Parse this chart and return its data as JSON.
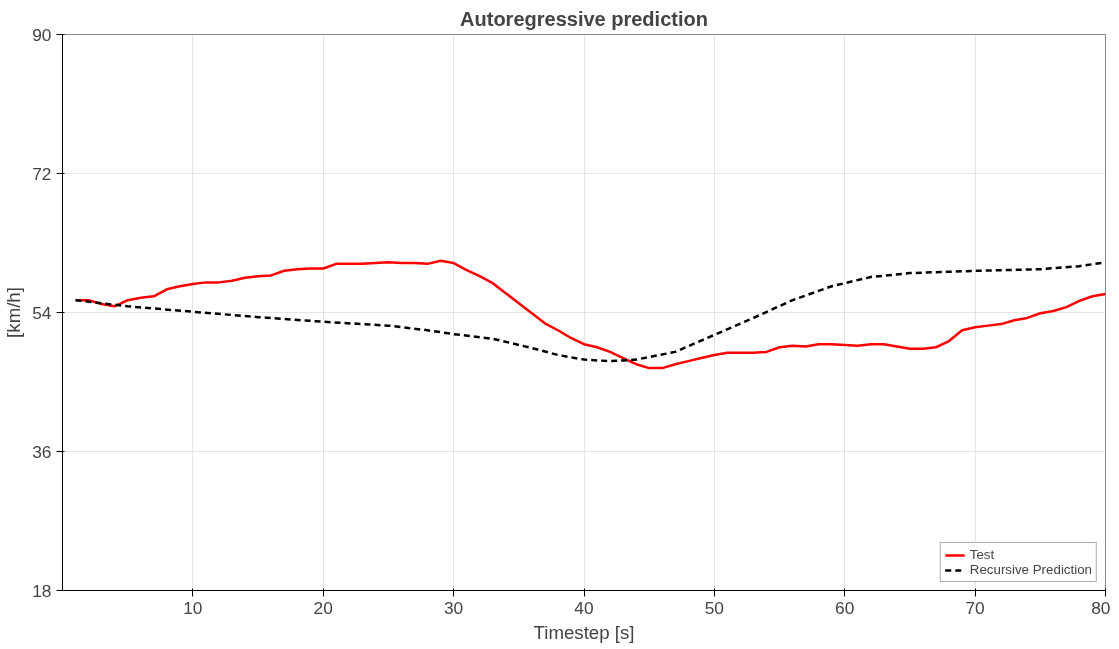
{
  "chart_data": {
    "type": "line",
    "title": "Autoregressive prediction",
    "xlabel": "Timestep [s]",
    "ylabel": "[km/h]",
    "xlim": [
      0,
      80
    ],
    "xticks": [
      10,
      20,
      30,
      40,
      50,
      60,
      70,
      80
    ],
    "ylim": [
      18,
      90
    ],
    "yticks": [
      18,
      36,
      54,
      72,
      90
    ],
    "grid": true,
    "legend": "bottom right",
    "series": [
      {
        "name": "Test",
        "color": "#ff0000",
        "line_style": "solid",
        "x": [
          1,
          2,
          3,
          4,
          5,
          6,
          7,
          8,
          9,
          10,
          11,
          12,
          13,
          14,
          15,
          16,
          17,
          18,
          19,
          20,
          21,
          22,
          23,
          24,
          25,
          26,
          27,
          28,
          29,
          30,
          31,
          32,
          33,
          34,
          35,
          36,
          37,
          38,
          39,
          40,
          41,
          42,
          43,
          44,
          45,
          46,
          47,
          48,
          49,
          50,
          51,
          52,
          53,
          54,
          55,
          56,
          57,
          58,
          59,
          60,
          61,
          62,
          63,
          64,
          65,
          66,
          67,
          68,
          69,
          70,
          71,
          72,
          73,
          74,
          75,
          76,
          77,
          78,
          79,
          80
        ],
        "values": [
          55.6,
          55.6,
          55.1,
          54.8,
          55.6,
          55.9,
          56.1,
          57.0,
          57.4,
          57.7,
          57.9,
          57.9,
          58.1,
          58.5,
          58.7,
          58.8,
          59.4,
          59.6,
          59.7,
          59.7,
          60.3,
          60.3,
          60.3,
          60.4,
          60.5,
          60.4,
          60.4,
          60.3,
          60.7,
          60.4,
          59.5,
          58.7,
          57.8,
          56.5,
          55.2,
          53.9,
          52.6,
          51.7,
          50.7,
          49.9,
          49.5,
          48.9,
          48.1,
          47.3,
          46.8,
          46.8,
          47.3,
          47.7,
          48.1,
          48.5,
          48.8,
          48.8,
          48.8,
          48.9,
          49.5,
          49.7,
          49.6,
          49.9,
          49.9,
          49.8,
          49.7,
          49.9,
          49.9,
          49.6,
          49.3,
          49.3,
          49.5,
          50.3,
          51.7,
          52.1,
          52.3,
          52.5,
          53.0,
          53.3,
          53.9,
          54.2,
          54.7,
          55.5,
          56.1,
          56.4
        ]
      },
      {
        "name": "Recursive Prediction",
        "color": "#000000",
        "line_style": "dashed",
        "x": [
          1,
          5,
          10,
          15,
          20,
          25,
          28,
          30,
          33,
          36,
          38,
          40,
          42,
          44,
          47,
          50,
          53,
          56,
          59,
          62,
          65,
          70,
          75,
          78,
          80
        ],
        "values": [
          55.6,
          54.8,
          54.1,
          53.4,
          52.8,
          52.3,
          51.7,
          51.2,
          50.6,
          49.4,
          48.5,
          47.9,
          47.7,
          47.9,
          48.9,
          51.1,
          53.3,
          55.6,
          57.4,
          58.6,
          59.1,
          59.4,
          59.6,
          60.0,
          60.5
        ]
      }
    ]
  }
}
